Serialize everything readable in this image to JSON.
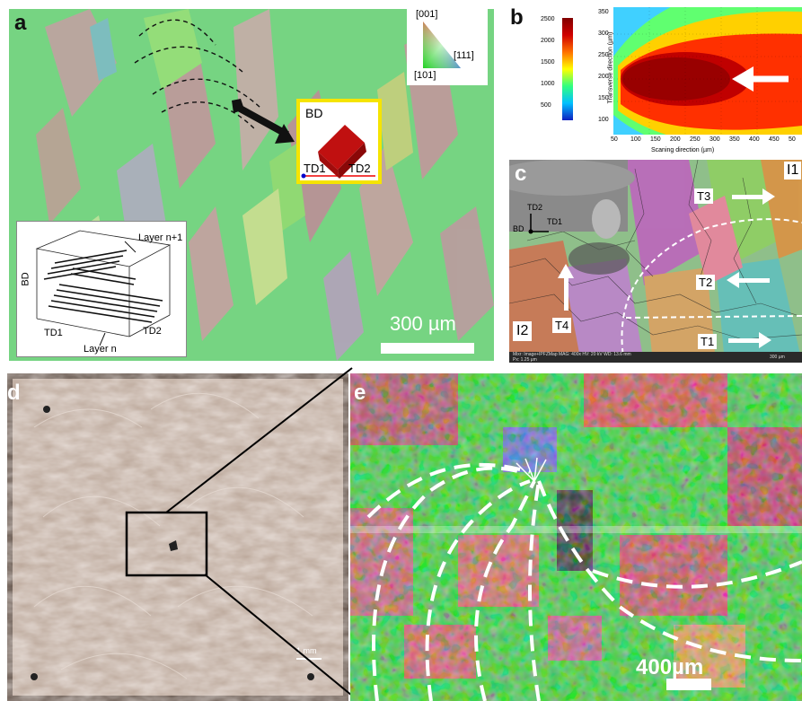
{
  "panel_a": {
    "label": "a",
    "ipf_key": {
      "top": "[001]",
      "right": "[111]",
      "bottom": "[101]"
    },
    "cube_inset": {
      "bd": "BD",
      "td1": "TD1",
      "td2": "TD2"
    },
    "layer_inset": {
      "bd": "BD",
      "td1": "TD1",
      "td2": "TD2",
      "layer_top": "Layer n+1",
      "layer_bottom": "Layer n"
    },
    "scale_bar": "300 µm"
  },
  "panel_b": {
    "label": "b",
    "xlabel": "Scaning direction (µm)",
    "ylabel": "Transverse direction (µm)",
    "x_ticks": [
      "50",
      "100",
      "150",
      "200",
      "250",
      "300",
      "350",
      "400",
      "450",
      "50"
    ],
    "y_ticks": [
      "350",
      "300",
      "250",
      "200",
      "150",
      "100"
    ],
    "colorbar_ticks": [
      "2500",
      "2000",
      "1500",
      "1000",
      "500"
    ]
  },
  "panel_c": {
    "label": "c",
    "region_labels": [
      "I1",
      "I2"
    ],
    "arrow_labels": [
      "T1",
      "T2",
      "T3",
      "T4"
    ],
    "axes": {
      "td2": "TD2",
      "td1": "TD1",
      "bd": "BD"
    },
    "footer": "Mixr: Image+IPFZMap   MAG: 400x   HV: 20 kV   WD: 13.6 mm",
    "footer2": "Px: 1.25 µm",
    "scale": "300 µm"
  },
  "panel_d": {
    "label": "d",
    "scale_bar": "1 mm"
  },
  "panel_e": {
    "label": "e",
    "scale_bar": "400µm"
  },
  "colors": {
    "ipf_green": "#3fd64a",
    "ipf_red": "#e04858",
    "ipf_blue": "#5a5ad8",
    "micrograph": "#c9b6a8",
    "melt_pool_core": "#8b0000"
  }
}
